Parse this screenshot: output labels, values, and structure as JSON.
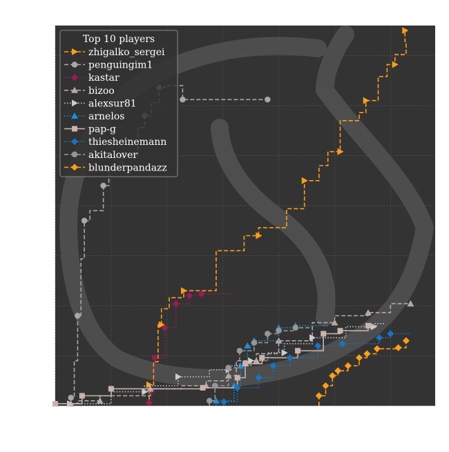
{
  "chart_data": {
    "type": "line",
    "style": "step",
    "title": "",
    "xlabel": "",
    "ylabel": "",
    "xlim": [
      0,
      340
    ],
    "ylim": [
      0,
      380
    ],
    "grid": true,
    "legend": {
      "title": "Top 10 players",
      "placement": "top-left"
    },
    "background_color": "#333333",
    "series": [
      {
        "name": "zhigalko_sergei",
        "color": "#ff9e1b",
        "linestyle": "dashed",
        "marker": "triangle-right",
        "points": [
          [
            84,
            0
          ],
          [
            84,
            21
          ],
          [
            88,
            21
          ],
          [
            88,
            44
          ],
          [
            92,
            44
          ],
          [
            92,
            81
          ],
          [
            95,
            81
          ],
          [
            95,
            97
          ],
          [
            102,
            97
          ],
          [
            102,
            108
          ],
          [
            115,
            108
          ],
          [
            115,
            115
          ],
          [
            144,
            115
          ],
          [
            144,
            155
          ],
          [
            169,
            155
          ],
          [
            169,
            170
          ],
          [
            182,
            170
          ],
          [
            182,
            178
          ],
          [
            207,
            178
          ],
          [
            207,
            197
          ],
          [
            223,
            197
          ],
          [
            223,
            225
          ],
          [
            236,
            225
          ],
          [
            236,
            240
          ],
          [
            244,
            240
          ],
          [
            244,
            254
          ],
          [
            255,
            254
          ],
          [
            255,
            285
          ],
          [
            272,
            285
          ],
          [
            272,
            293
          ],
          [
            278,
            293
          ],
          [
            278,
            305
          ],
          [
            289,
            305
          ],
          [
            289,
            329
          ],
          [
            297,
            329
          ],
          [
            297,
            341
          ],
          [
            304,
            341
          ],
          [
            304,
            351
          ],
          [
            314,
            351
          ],
          [
            314,
            364
          ],
          [
            313,
            364
          ],
          [
            313,
            375
          ]
        ]
      },
      {
        "name": "penguingim1",
        "color": "#a8a8a8",
        "linestyle": "dashed",
        "marker": "circle",
        "points": [
          [
            14,
            0
          ],
          [
            14,
            8
          ],
          [
            17,
            8
          ],
          [
            17,
            45
          ],
          [
            20,
            45
          ],
          [
            20,
            90
          ],
          [
            23,
            90
          ],
          [
            23,
            147
          ],
          [
            26,
            147
          ],
          [
            26,
            185
          ],
          [
            31,
            185
          ],
          [
            31,
            195
          ],
          [
            43,
            195
          ],
          [
            43,
            220
          ],
          [
            48,
            220
          ],
          [
            48,
            238
          ],
          [
            60,
            238
          ],
          [
            60,
            250
          ],
          [
            74,
            250
          ],
          [
            74,
            278
          ],
          [
            80,
            278
          ],
          [
            80,
            290
          ],
          [
            86,
            290
          ],
          [
            86,
            303
          ],
          [
            93,
            303
          ],
          [
            93,
            318
          ],
          [
            98,
            318
          ],
          [
            98,
            320
          ],
          [
            114,
            320
          ],
          [
            114,
            306
          ],
          [
            131,
            306
          ],
          [
            131,
            306
          ],
          [
            190,
            306
          ],
          [
            190,
            306
          ]
        ]
      },
      {
        "name": "kastar",
        "color": "#9e1b57",
        "linestyle": "dotted",
        "marker": "diamond",
        "points": [
          [
            84,
            0
          ],
          [
            84,
            3
          ],
          [
            86,
            3
          ],
          [
            86,
            15
          ],
          [
            89,
            15
          ],
          [
            89,
            48
          ],
          [
            98,
            48
          ],
          [
            98,
            78
          ],
          [
            108,
            78
          ],
          [
            108,
            102
          ],
          [
            120,
            102
          ],
          [
            120,
            110
          ],
          [
            131,
            110
          ],
          [
            131,
            112
          ],
          [
            157,
            112
          ]
        ]
      },
      {
        "name": "bizoo",
        "color": "#b8a9a4",
        "linestyle": "dashed",
        "marker": "triangle-up",
        "points": [
          [
            14,
            0
          ],
          [
            14,
            2
          ],
          [
            20,
            2
          ],
          [
            20,
            5
          ],
          [
            40,
            5
          ],
          [
            40,
            10
          ],
          [
            85,
            10
          ],
          [
            85,
            17
          ],
          [
            113,
            17
          ],
          [
            113,
            20
          ],
          [
            135,
            20
          ],
          [
            135,
            25
          ],
          [
            155,
            25
          ],
          [
            155,
            30
          ],
          [
            162,
            30
          ],
          [
            162,
            45
          ],
          [
            180,
            45
          ],
          [
            180,
            52
          ],
          [
            200,
            52
          ],
          [
            200,
            65
          ],
          [
            230,
            65
          ],
          [
            230,
            83
          ],
          [
            250,
            83
          ],
          [
            250,
            90
          ],
          [
            280,
            90
          ],
          [
            280,
            93
          ],
          [
            300,
            93
          ],
          [
            300,
            102
          ],
          [
            318,
            102
          ],
          [
            318,
            105
          ]
        ]
      },
      {
        "name": "alexsur81",
        "color": "#c8cdd3",
        "linestyle": "dotted",
        "marker": "triangle-right",
        "points": [
          [
            13,
            0
          ],
          [
            13,
            2
          ],
          [
            50,
            2
          ],
          [
            50,
            14
          ],
          [
            80,
            14
          ],
          [
            80,
            20
          ],
          [
            110,
            20
          ],
          [
            110,
            29
          ],
          [
            138,
            29
          ],
          [
            138,
            36
          ],
          [
            155,
            36
          ],
          [
            155,
            40
          ],
          [
            175,
            40
          ],
          [
            175,
            45
          ],
          [
            190,
            45
          ],
          [
            190,
            53
          ],
          [
            205,
            53
          ],
          [
            205,
            62
          ],
          [
            230,
            62
          ],
          [
            230,
            68
          ],
          [
            260,
            68
          ],
          [
            260,
            79
          ],
          [
            285,
            79
          ],
          [
            285,
            82
          ],
          [
            295,
            82
          ]
        ]
      },
      {
        "name": "arnelos",
        "color": "#1f8dd6",
        "linestyle": "dotted",
        "marker": "triangle-up",
        "points": [
          [
            144,
            0
          ],
          [
            144,
            5
          ],
          [
            160,
            5
          ],
          [
            160,
            20
          ],
          [
            166,
            20
          ],
          [
            166,
            40
          ],
          [
            172,
            40
          ],
          [
            172,
            60
          ],
          [
            178,
            60
          ],
          [
            178,
            65
          ],
          [
            200,
            65
          ],
          [
            200,
            78
          ],
          [
            215,
            78
          ],
          [
            215,
            80
          ],
          [
            244,
            80
          ]
        ]
      },
      {
        "name": "pap-g",
        "color": "#c9b3ad",
        "linestyle": "solid",
        "marker": "square",
        "points": [
          [
            0,
            0
          ],
          [
            0,
            2
          ],
          [
            24,
            2
          ],
          [
            24,
            10
          ],
          [
            50,
            10
          ],
          [
            50,
            17
          ],
          [
            132,
            17
          ],
          [
            132,
            18
          ],
          [
            163,
            18
          ],
          [
            163,
            28
          ],
          [
            170,
            28
          ],
          [
            170,
            42
          ],
          [
            185,
            42
          ],
          [
            185,
            48
          ],
          [
            217,
            48
          ],
          [
            217,
            55
          ],
          [
            240,
            55
          ],
          [
            240,
            72
          ],
          [
            255,
            72
          ],
          [
            255,
            75
          ],
          [
            280,
            75
          ],
          [
            280,
            80
          ],
          [
            288,
            80
          ]
        ]
      },
      {
        "name": "thiesheinemann",
        "color": "#1a73c2",
        "linestyle": "dotted",
        "marker": "diamond",
        "points": [
          [
            151,
            0
          ],
          [
            151,
            4
          ],
          [
            163,
            4
          ],
          [
            163,
            18
          ],
          [
            182,
            18
          ],
          [
            182,
            28
          ],
          [
            195,
            28
          ],
          [
            195,
            40
          ],
          [
            210,
            40
          ],
          [
            210,
            48
          ],
          [
            235,
            48
          ],
          [
            235,
            60
          ],
          [
            257,
            60
          ],
          [
            257,
            62
          ],
          [
            290,
            62
          ],
          [
            290,
            68
          ],
          [
            300,
            68
          ],
          [
            300,
            72
          ],
          [
            318,
            72
          ]
        ]
      },
      {
        "name": "akitalover",
        "color": "#969696",
        "linestyle": "dashed",
        "marker": "circle",
        "points": [
          [
            138,
            0
          ],
          [
            138,
            5
          ],
          [
            143,
            5
          ],
          [
            143,
            20
          ],
          [
            155,
            20
          ],
          [
            155,
            38
          ],
          [
            165,
            38
          ],
          [
            165,
            55
          ],
          [
            178,
            55
          ],
          [
            178,
            63
          ],
          [
            190,
            63
          ],
          [
            190,
            72
          ],
          [
            200,
            72
          ],
          [
            200,
            75
          ],
          [
            215,
            75
          ],
          [
            215,
            78
          ],
          [
            230,
            78
          ]
        ]
      },
      {
        "name": "blunderpandazz",
        "color": "#ff9e1b",
        "linestyle": "dashed",
        "marker": "diamond",
        "points": [
          [
            236,
            0
          ],
          [
            236,
            10
          ],
          [
            242,
            10
          ],
          [
            242,
            20
          ],
          [
            248,
            20
          ],
          [
            248,
            30
          ],
          [
            253,
            30
          ],
          [
            253,
            35
          ],
          [
            262,
            35
          ],
          [
            262,
            40
          ],
          [
            272,
            40
          ],
          [
            272,
            48
          ],
          [
            279,
            48
          ],
          [
            279,
            52
          ],
          [
            288,
            52
          ],
          [
            288,
            57
          ],
          [
            307,
            57
          ],
          [
            307,
            58
          ],
          [
            314,
            58
          ],
          [
            314,
            65
          ]
        ]
      }
    ]
  }
}
